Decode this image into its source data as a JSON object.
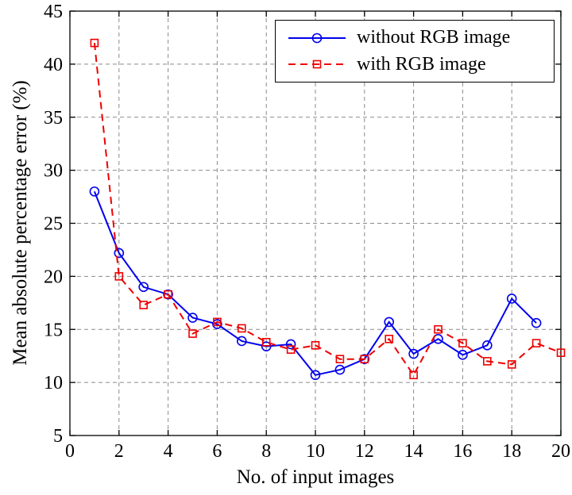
{
  "chart_data": {
    "type": "line",
    "title": "",
    "xlabel": "No. of input images",
    "ylabel": "Mean absolute percentage error (%)",
    "xlim": [
      0,
      20
    ],
    "ylim": [
      5,
      45
    ],
    "x_ticks": [
      0,
      2,
      4,
      6,
      8,
      10,
      12,
      14,
      16,
      18,
      20
    ],
    "y_ticks": [
      5,
      10,
      15,
      20,
      25,
      30,
      35,
      40,
      45
    ],
    "grid": true,
    "legend_position": "top-right-inside",
    "x": [
      1,
      2,
      3,
      4,
      5,
      6,
      7,
      8,
      9,
      10,
      11,
      12,
      13,
      14,
      15,
      16,
      17,
      18,
      19,
      20
    ],
    "series": [
      {
        "name": "without RGB image",
        "color": "#0000ee",
        "line": "solid",
        "marker": "circle",
        "values": [
          28.0,
          22.2,
          19.0,
          18.3,
          16.1,
          15.5,
          13.9,
          13.4,
          13.6,
          10.7,
          11.2,
          12.2,
          15.7,
          12.7,
          14.1,
          12.6,
          13.5,
          17.9,
          15.6,
          null
        ]
      },
      {
        "name": "with RGB image",
        "color": "#ee0000",
        "line": "dashed",
        "marker": "square",
        "values": [
          42.0,
          20.0,
          17.3,
          18.3,
          14.6,
          15.7,
          15.1,
          13.8,
          13.1,
          13.5,
          12.2,
          12.2,
          14.1,
          10.7,
          15.0,
          13.7,
          12.0,
          11.7,
          13.7,
          12.8
        ]
      }
    ],
    "grid_color": "#8a8a8a",
    "axis_color": "#000000"
  }
}
